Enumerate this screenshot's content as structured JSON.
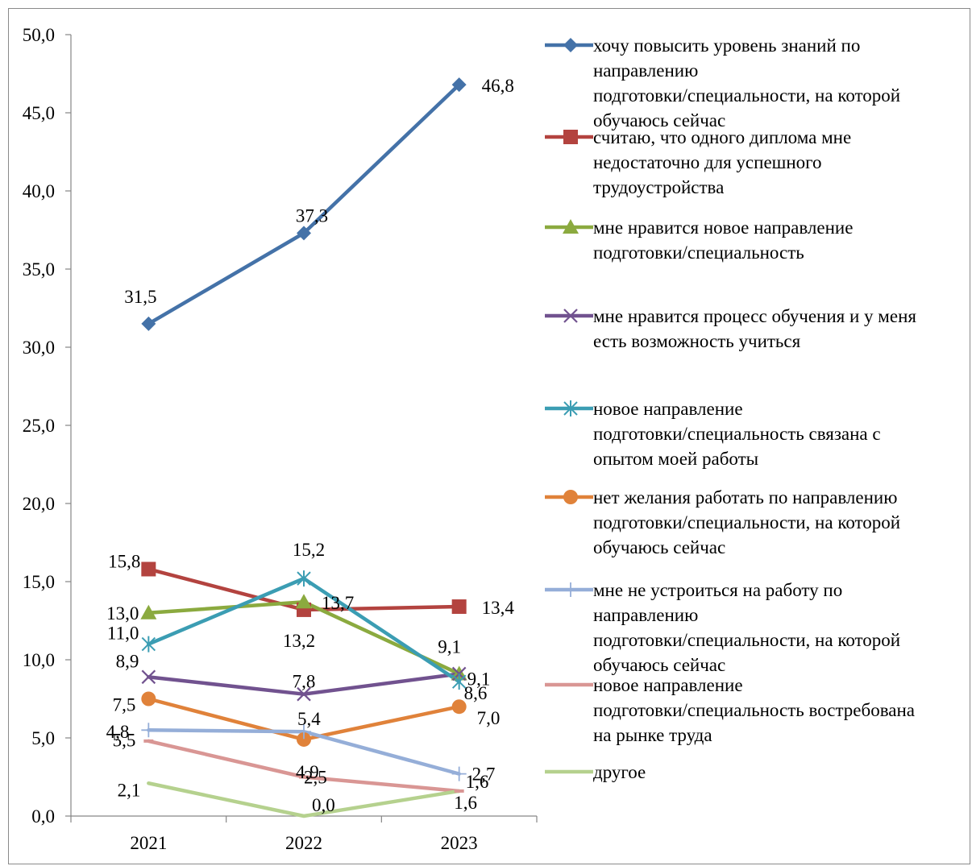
{
  "chart_data": {
    "type": "line",
    "categories": [
      "2021",
      "2022",
      "2023"
    ],
    "ylim": [
      0,
      50
    ],
    "yticks": [
      "0,0",
      "5,0",
      "10,0",
      "15,0",
      "20,0",
      "25,0",
      "30,0",
      "35,0",
      "40,0",
      "45,0",
      "50,0"
    ],
    "ytick_values": [
      0,
      5,
      10,
      15,
      20,
      25,
      30,
      35,
      40,
      45,
      50
    ],
    "legend_position": "right",
    "grid": false,
    "series": [
      {
        "name": "хочу повысить уровень знаний по направлению подготовки/специальности, на которой обучаюсь сейчас",
        "legend_lines": [
          "хочу повысить уровень знаний по",
          "направлению",
          "подготовки/специальности, на которой",
          "обучаюсь сейчас"
        ],
        "values": [
          31.5,
          37.3,
          46.8
        ],
        "labels": [
          "31,5",
          "37,3",
          "46,8"
        ],
        "color": "#4472A8",
        "marker": "diamond"
      },
      {
        "name": "считаю, что одного диплома мне недостаточно для успешного трудоустройства",
        "legend_lines": [
          "считаю, что одного диплома мне",
          "недостаточно для успешного",
          "трудоустройства"
        ],
        "values": [
          15.8,
          13.2,
          13.4
        ],
        "labels": [
          "15,8",
          "13,2",
          "13,4"
        ],
        "color": "#B3433F",
        "marker": "square"
      },
      {
        "name": "мне нравится новое направление подготовки/специальность",
        "legend_lines": [
          "мне нравится новое направление",
          "подготовки/специальность"
        ],
        "values": [
          13.0,
          13.7,
          9.1
        ],
        "labels": [
          "13,0",
          "13,7",
          "9,1"
        ],
        "color": "#8BAA3F",
        "marker": "triangle"
      },
      {
        "name": "мне нравится процесс обучения и у меня есть возможность учиться",
        "legend_lines": [
          "мне нравится процесс обучения и у меня",
          "есть возможность учиться"
        ],
        "values": [
          8.9,
          7.8,
          9.1
        ],
        "labels": [
          "8,9",
          "7,8",
          "9,1"
        ],
        "color": "#71528F",
        "marker": "x"
      },
      {
        "name": "новое направление подготовки/специальность связана с опытом моей работы",
        "legend_lines": [
          "новое направление",
          "подготовки/специальность связана с",
          "опытом моей работы"
        ],
        "values": [
          11.0,
          15.2,
          8.6
        ],
        "labels": [
          "11,0",
          "15,2",
          "8,6"
        ],
        "color": "#3B9DB3",
        "marker": "asterisk"
      },
      {
        "name": "нет желания работать по направлению подготовки/специальности, на которой обучаюсь сейчас",
        "legend_lines": [
          "нет желания работать по направлению",
          "подготовки/специальности, на которой",
          "обучаюсь сейчас"
        ],
        "values": [
          7.5,
          4.9,
          7.0
        ],
        "labels": [
          "7,5",
          "4,9",
          "7,0"
        ],
        "color": "#E0823A",
        "marker": "circle"
      },
      {
        "name": "мне не устроиться на работу по направлению подготовки/специальности, на которой обучаюсь сейчас",
        "legend_lines": [
          "мне не устроиться на работу по",
          "направлению",
          "подготовки/специальности, на которой",
          "обучаюсь сейчас"
        ],
        "values": [
          5.5,
          5.4,
          2.7
        ],
        "labels": [
          "5,5",
          "5,4",
          "2,7"
        ],
        "color": "#95AED8",
        "marker": "plus"
      },
      {
        "name": "новое направление подготовки/специальность востребована на рынке труда",
        "legend_lines": [
          "новое направление",
          "подготовки/специальность востребована",
          "на рынке труда"
        ],
        "values": [
          4.8,
          2.5,
          1.6
        ],
        "labels": [
          "4,8",
          "2,5",
          "1,6"
        ],
        "color": "#D99694",
        "marker": "dash"
      },
      {
        "name": "другое",
        "legend_lines": [
          "другое"
        ],
        "values": [
          2.1,
          0.0,
          1.6
        ],
        "labels": [
          "2,1",
          "0,0",
          "1,6"
        ],
        "color": "#B5D18E",
        "marker": "none"
      }
    ]
  }
}
